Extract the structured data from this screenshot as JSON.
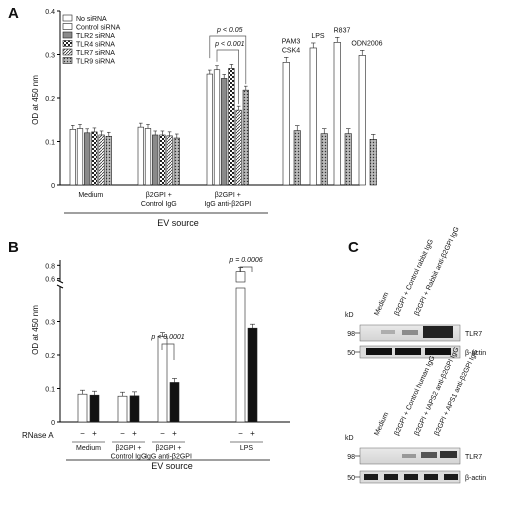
{
  "chart_data": [
    {
      "panel": "A",
      "type": "bar",
      "ylabel": "OD at 450 nm",
      "ylim": [
        0,
        0.4
      ],
      "yticks": [
        "0",
        "0.1",
        "0.2",
        "0.3",
        "0.4"
      ],
      "legend": [
        "No siRNA",
        "Control siRNA",
        "TLR2 siRNA",
        "TLR4 siRNA",
        "TLR7 siRNA",
        "TLR9 siRNA"
      ],
      "groups": [
        {
          "label": [
            "Medium"
          ],
          "values": [
            0.128,
            0.13,
            0.12,
            0.122,
            0.115,
            0.112
          ]
        },
        {
          "label": [
            "β2GPI +",
            "Control IgG"
          ],
          "values": [
            0.133,
            0.13,
            0.115,
            0.115,
            0.113,
            0.108
          ]
        },
        {
          "label": [
            "β2GPI +",
            "IgG anti-β2GPI"
          ],
          "values": [
            0.255,
            0.265,
            0.245,
            0.268,
            0.172,
            0.218
          ]
        }
      ],
      "ligands": [
        {
          "label": [
            "PAM3",
            "CSK4"
          ],
          "values": [
            0.282,
            0.125
          ]
        },
        {
          "label": [
            "LPS"
          ],
          "values": [
            0.315,
            0.118
          ]
        },
        {
          "label": [
            "R837"
          ],
          "values": [
            0.328,
            0.118
          ]
        },
        {
          "label": [
            "ODN2006"
          ],
          "values": [
            0.298,
            0.105
          ]
        }
      ],
      "annotations": [
        "p < 0.05",
        "p < 0.001"
      ],
      "xlabel": "EV source"
    },
    {
      "panel": "B",
      "type": "bar",
      "ylabel": "OD at 450 nm",
      "yticks_low": [
        "0",
        "0.1",
        "0.2",
        "0.3"
      ],
      "yticks_high": [
        "0.6",
        "0.8"
      ],
      "row_label": "RNase A",
      "signs": [
        "−",
        "+"
      ],
      "groups": [
        {
          "label": [
            "Medium"
          ],
          "values": [
            0.083,
            0.08
          ]
        },
        {
          "label": [
            "β2GPI +",
            "Control IgG"
          ],
          "values": [
            0.077,
            0.078
          ]
        },
        {
          "label": [
            "β2GPI +",
            "IgG anti-β2GPI"
          ],
          "values": [
            0.255,
            0.118
          ]
        },
        {
          "label": [
            "LPS"
          ],
          "values": [
            0.705,
            0.28
          ]
        }
      ],
      "annotations": [
        "p < 0.0001",
        "p = 0.0006"
      ],
      "xlabel": "EV source"
    }
  ],
  "panel_c": {
    "letter": "C",
    "kd": "kD",
    "top": {
      "lanes": [
        "Medium",
        "β2GPI + Control rabbit IgG",
        "β2GPI + Rabbit anti-β2GPI IgG"
      ],
      "markers": [
        "98",
        "50"
      ],
      "bands": [
        "TLR7",
        "β-actin"
      ]
    },
    "bottom": {
      "lanes": [
        "Medium",
        "β2GPI + Control human IgG",
        "β2GPI + IAPS2 anti-β2GPI IgG",
        "β2GPI + APS1 anti-β2GPI IgG"
      ],
      "markers": [
        "98",
        "50"
      ],
      "bands": [
        "TLR7",
        "β-actin"
      ]
    }
  },
  "labels": {
    "a": "A",
    "b": "B"
  }
}
